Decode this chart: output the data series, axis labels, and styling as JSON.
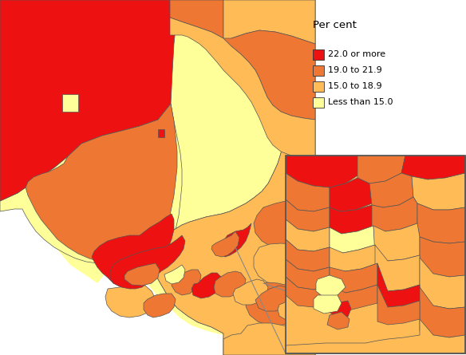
{
  "legend_title": "Per cent",
  "legend_items": [
    {
      "label": "22.0 or more",
      "color": "#EE1111"
    },
    {
      "label": "19.0 to 21.9",
      "color": "#EE7733"
    },
    {
      "label": "15.0 to 18.9",
      "color": "#FFBB55"
    },
    {
      "label": "Less than 15.0",
      "color": "#FFFF99"
    }
  ],
  "background_color": "#FFFFFF",
  "border_color": "#555555",
  "border_width": 0.5,
  "fig_w": 5.84,
  "fig_h": 4.45,
  "dpi": 100
}
